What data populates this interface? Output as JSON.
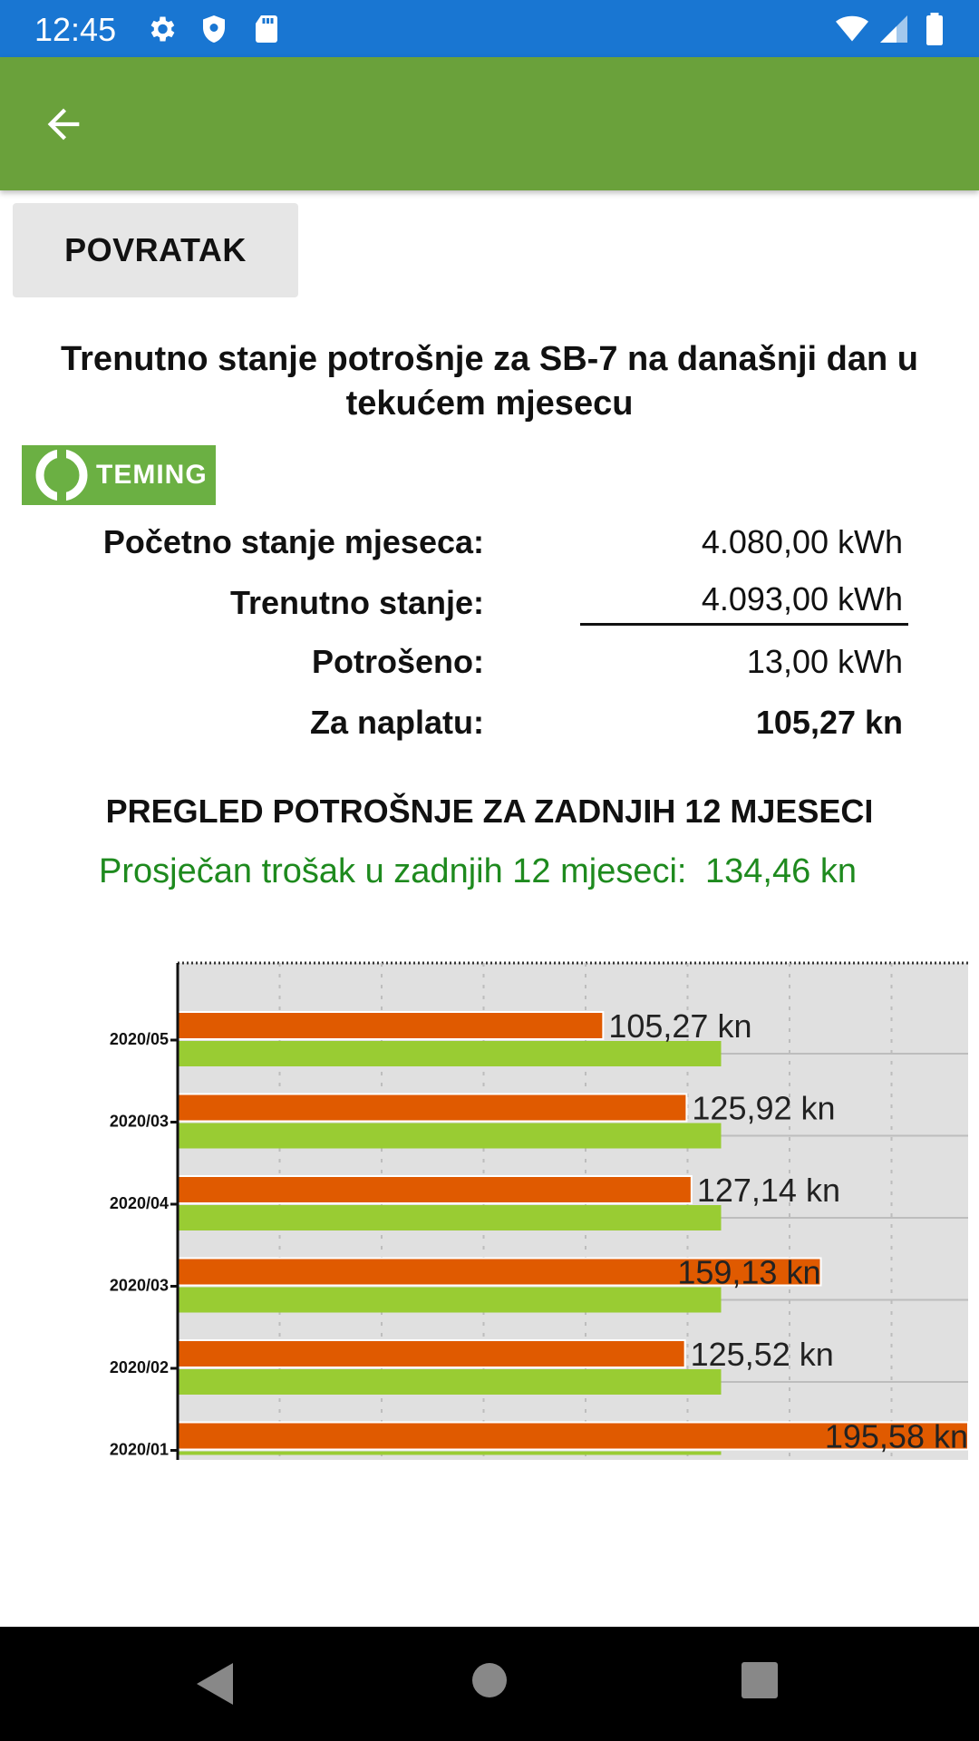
{
  "status_bar": {
    "time": "12:45",
    "icons": [
      "gear-icon",
      "shield-icon",
      "sd-card-icon",
      "wifi-icon",
      "signal-icon",
      "battery-icon"
    ]
  },
  "app_bar": {
    "back_icon": "arrow-back-icon"
  },
  "buttons": {
    "povratak": "POVRATAK"
  },
  "header": {
    "title": "Trenutno stanje potrošnje za SB-7 na današnji dan u tekućem mjesecu",
    "logo_text": "TEMING"
  },
  "summary": [
    {
      "label": "Početno stanje mjeseca:",
      "value": "4.080,00 kWh",
      "bold": false
    },
    {
      "label": "Trenutno stanje:",
      "value": "4.093,00 kWh",
      "bold": false
    },
    {
      "label": "Potrošeno:",
      "value": "13,00 kWh",
      "bold": false
    },
    {
      "label": "Za naplatu:",
      "value": "105,27 kn",
      "bold": true
    }
  ],
  "overview": {
    "title": "PREGLED POTROŠNJE ZA ZADNJIH 12 MJESECI",
    "avg_label": "Prosječan trošak u zadnjih 12 mjeseci:",
    "avg_value": "134,46 kn"
  },
  "colors": {
    "status_bar": "#1976d2",
    "app_bar": "#6aa13b",
    "bar_cost": "#e05a00",
    "bar_average": "#99cc33",
    "average_text": "#1e8a1e",
    "chart_bg": "#e0e0e0"
  },
  "chart_data": {
    "type": "bar",
    "orientation": "horizontal",
    "categories": [
      "2020/05",
      "2020/03",
      "2020/04",
      "2020/03",
      "2020/02",
      "2020/01"
    ],
    "series": [
      {
        "values": [
          105.27,
          125.92,
          127.14,
          159.13,
          125.52,
          195.58
        ]
      },
      {
        "values": [
          134.46,
          134.46,
          134.46,
          134.46,
          134.46,
          134.46
        ]
      }
    ],
    "data_labels": [
      "105,27 kn",
      "125,92 kn",
      "127,14 kn",
      "159,13 kn",
      "125,52 kn",
      "195,58 kn"
    ],
    "xlim": [
      0,
      195.58
    ],
    "grid": true
  }
}
